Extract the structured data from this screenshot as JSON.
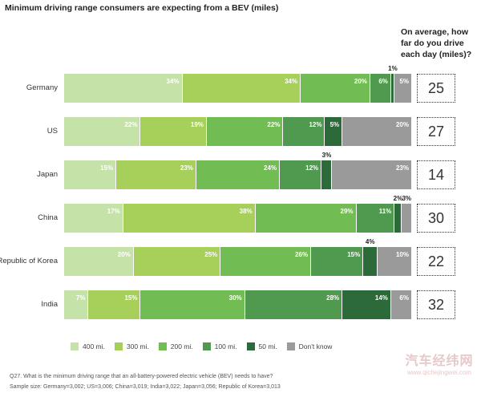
{
  "chart_data": {
    "type": "bar",
    "orientation": "horizontal-stacked-100",
    "title": "Minimum driving range consumers are expecting from a BEV (miles)",
    "categories": [
      "Germany",
      "US",
      "Japan",
      "China",
      "Republic of Korea",
      "India"
    ],
    "series": [
      {
        "name": "400 mi.",
        "color": "#c5e3a8",
        "values": [
          34,
          22,
          15,
          17,
          20,
          7
        ]
      },
      {
        "name": "300 mi.",
        "color": "#a6d05a",
        "values": [
          34,
          19,
          23,
          38,
          25,
          15
        ]
      },
      {
        "name": "200 mi.",
        "color": "#72bd53",
        "values": [
          20,
          22,
          24,
          29,
          26,
          30
        ]
      },
      {
        "name": "100 mi.",
        "color": "#4f9a4e",
        "values": [
          6,
          12,
          12,
          11,
          15,
          28
        ]
      },
      {
        "name": "50 mi.",
        "color": "#2d6a3a",
        "values": [
          1,
          5,
          3,
          2,
          4,
          14
        ]
      },
      {
        "name": "Don't know",
        "color": "#9a9a9a",
        "values": [
          5,
          20,
          23,
          3,
          10,
          6
        ]
      }
    ],
    "daily_drive": {
      "heading": "On average, how far do you drive each day (miles)?",
      "values": [
        25,
        27,
        14,
        30,
        22,
        32
      ]
    },
    "legend_position": "bottom"
  },
  "footnotes": {
    "question": "Q27. What is the minimum driving range that an all-battery-powered electric vehicle (BEV) needs to have?",
    "sample": "Sample size: Germany=3,002; US=3,006; China=3,019; India=3,022; Japan=3,056; Republic of Korea=3,013"
  },
  "watermark": {
    "name": "汽车经纬网",
    "url": "www.qichejingwei.com"
  }
}
